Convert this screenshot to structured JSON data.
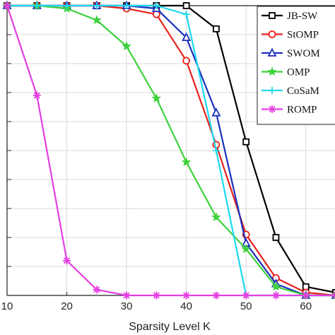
{
  "chart_data": {
    "type": "line",
    "xlabel": "Sparsity Level K",
    "ylabel": "",
    "xlim": [
      10,
      65
    ],
    "ylim": [
      0,
      1
    ],
    "x_ticks": [
      10,
      20,
      30,
      40,
      50,
      60
    ],
    "y_tick_values": [
      0,
      0.1,
      0.2,
      0.3,
      0.4,
      0.5,
      0.6,
      0.7,
      0.8,
      0.9,
      1.0
    ],
    "grid": true,
    "legend_position": "top-right",
    "series": [
      {
        "name": "JB-SW",
        "color": "#000000",
        "marker": "square",
        "x": [
          10,
          15,
          20,
          25,
          30,
          35,
          40,
          45,
          50,
          55,
          60,
          65
        ],
        "y": [
          1.0,
          1.0,
          1.0,
          1.0,
          1.0,
          1.0,
          1.0,
          0.92,
          0.53,
          0.2,
          0.03,
          0.01
        ]
      },
      {
        "name": "StOMP",
        "color": "#e8211b",
        "marker": "circle",
        "x": [
          10,
          15,
          20,
          25,
          30,
          35,
          40,
          45,
          50,
          55,
          60,
          65
        ],
        "y": [
          1.0,
          1.0,
          1.0,
          1.0,
          0.99,
          0.97,
          0.81,
          0.52,
          0.21,
          0.06,
          0.01,
          0.0
        ]
      },
      {
        "name": "SWOM",
        "color": "#1a2fbd",
        "marker": "triangle",
        "x": [
          10,
          15,
          20,
          25,
          30,
          35,
          40,
          45,
          50,
          55,
          60,
          65
        ],
        "y": [
          1.0,
          1.0,
          1.0,
          1.0,
          1.0,
          0.99,
          0.89,
          0.63,
          0.18,
          0.04,
          0.0,
          0.0
        ]
      },
      {
        "name": "OMP",
        "color": "#3cd23c",
        "marker": "star",
        "x": [
          10,
          15,
          20,
          25,
          30,
          35,
          40,
          45,
          50,
          55,
          60,
          65
        ],
        "y": [
          1.0,
          1.0,
          0.99,
          0.95,
          0.86,
          0.68,
          0.46,
          0.27,
          0.16,
          0.03,
          0.0,
          0.0
        ]
      },
      {
        "name": "CoSaM",
        "color": "#1ed8f0",
        "marker": "plus",
        "x": [
          10,
          15,
          20,
          25,
          30,
          35,
          40,
          45,
          50,
          55,
          60,
          65
        ],
        "y": [
          1.0,
          1.0,
          1.0,
          1.0,
          1.0,
          1.0,
          0.97,
          0.5,
          0.0,
          0.0,
          0.0,
          0.0
        ]
      },
      {
        "name": "ROMP",
        "color": "#e43ee0",
        "marker": "asterisk",
        "x": [
          10,
          15,
          20,
          25,
          30,
          35,
          40,
          45,
          50,
          55,
          60,
          65
        ],
        "y": [
          1.0,
          0.69,
          0.12,
          0.02,
          0.0,
          0.0,
          0.0,
          0.0,
          0.0,
          0.0,
          0.0,
          0.0
        ]
      }
    ]
  }
}
